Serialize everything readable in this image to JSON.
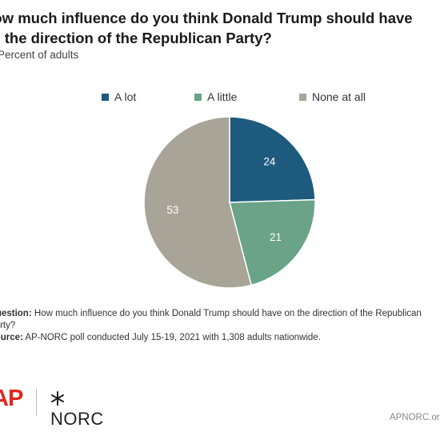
{
  "header": {
    "title_line1": "How much influence do you think Donald Trump should have",
    "title_line2": "on the direction of the Republican Party?",
    "subtitle": "Percent of adults"
  },
  "chart_data": {
    "type": "pie",
    "title": "How much influence do you think Donald Trump should have on the direction of the Republican Party?",
    "subtitle": "Percent of adults",
    "legend_position": "top",
    "labels": [
      "A lot",
      "A little",
      "None at all"
    ],
    "values": [
      24,
      21,
      53
    ],
    "colors": [
      "#1d5a7e",
      "#6aa387",
      "#a8a497"
    ],
    "label_color": "#ffffff"
  },
  "footnote": {
    "question_label": "Question:",
    "question_text": "How much influence do you think Donald Trump should have on the direction of the Republican Party?",
    "source_label": "Source:",
    "source_text": "AP-NORC poll conducted July 15-19, 2021 with 1,308 adults nationwide."
  },
  "branding": {
    "ap": "AP",
    "norc": "NORC",
    "website": "APNORC.org"
  }
}
